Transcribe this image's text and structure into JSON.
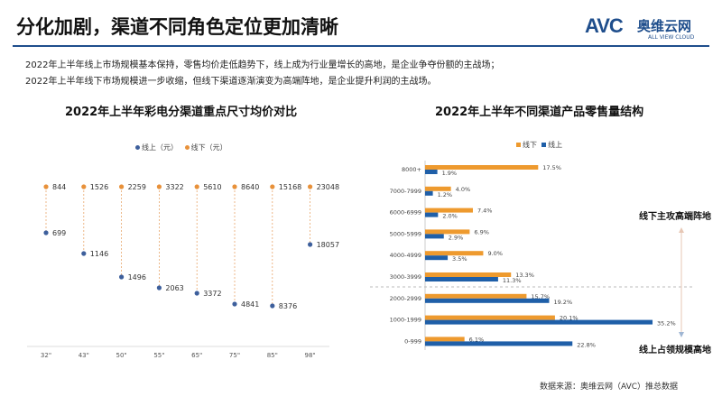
{
  "header": {
    "title": "分化加剧，渠道不同角色定位更加清晰",
    "logo_text": "AVC 奥维云网 ALL VIEW CLOUD"
  },
  "logo": {
    "mark": "AVC",
    "cn": "奥维云网",
    "en": "ALL VIEW CLOUD"
  },
  "description": [
    "2022年上半年线上市场规模基本保持，零售均价走低趋势下，线上成为行业量增长的高地，是企业争夺份额的主战场；",
    "2022年上半年线下市场规模进一步收缩，但线下渠道逐渐演变为高端阵地，是企业提升利润的主战场。"
  ],
  "colors": {
    "online": "#3d5f9c",
    "offline": "#e8913a",
    "online_bar": "#1f5fa8",
    "offline_bar": "#ee9a2e",
    "accent": "#1f4e8c"
  },
  "chart_data": [
    {
      "type": "scatter",
      "title": "2022年上半年彩电分渠道重点尺寸均价对比",
      "categories": [
        "32\"",
        "43\"",
        "50\"",
        "55\"",
        "65\"",
        "75\"",
        "85\"",
        "98\""
      ],
      "legend_position": "top",
      "series": [
        {
          "name": "线上（元）",
          "values": [
            699,
            1146,
            1496,
            2063,
            3372,
            4841,
            8376,
            18057
          ]
        },
        {
          "name": "线下（元）",
          "values": [
            844,
            1526,
            2259,
            3322,
            5610,
            8640,
            15168,
            23048
          ]
        }
      ]
    },
    {
      "type": "bar",
      "orientation": "horizontal",
      "title": "2022年上半年不同渠道产品零售量结构",
      "categories": [
        "8000+",
        "7000-7999",
        "6000-6999",
        "5000-5999",
        "4000-4999",
        "3000-3999",
        "2000-2999",
        "1000-1999",
        "0-999"
      ],
      "legend_position": "top",
      "series": [
        {
          "name": "线下",
          "values": [
            17.5,
            4.0,
            7.4,
            6.9,
            9.0,
            13.3,
            15.7,
            20.1,
            6.1
          ]
        },
        {
          "name": "线上",
          "values": [
            1.9,
            1.2,
            2.0,
            2.9,
            3.5,
            11.3,
            19.2,
            35.2,
            22.8
          ]
        }
      ],
      "annotations": [
        "线下主攻高端阵地",
        "线上占领规模高地"
      ]
    }
  ],
  "source": "数据来源：奥维云网（AVC）推总数据"
}
